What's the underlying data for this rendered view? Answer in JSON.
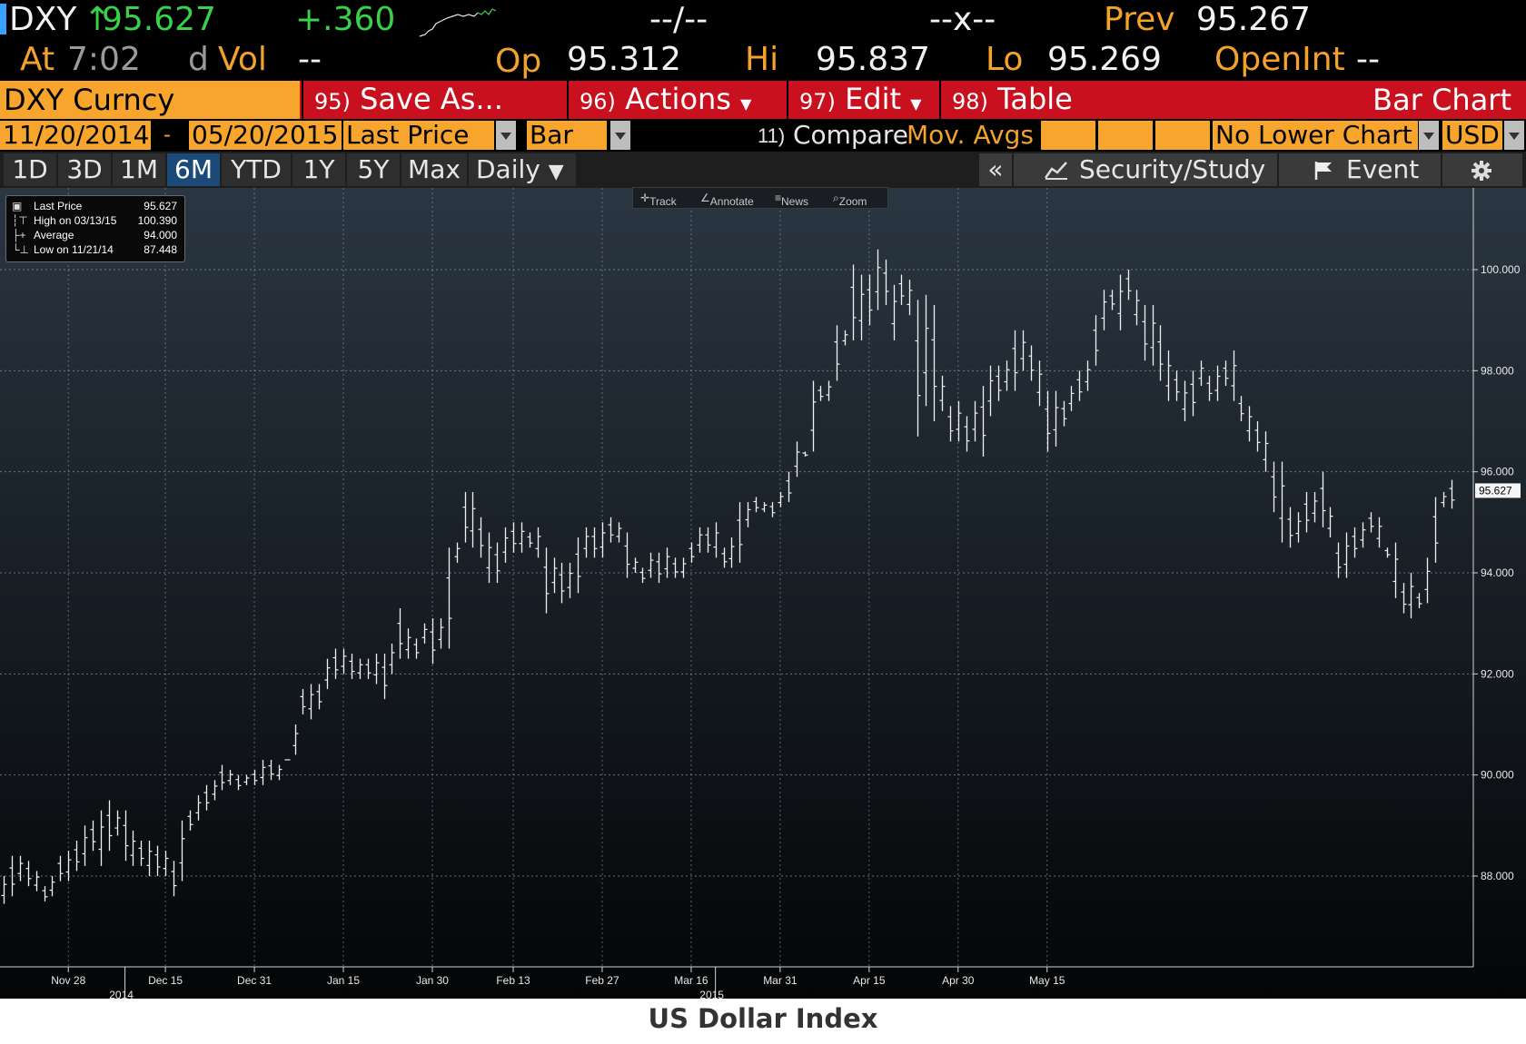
{
  "header": {
    "ticker": "DXY",
    "arrow": "↑",
    "last": "95.627",
    "change": "+.360",
    "dashes1": "--/--",
    "dashes2": "--x--",
    "prev_label": "Prev",
    "prev": "95.267",
    "at_label": "At",
    "time": "7:02",
    "dvol_d": "d",
    "dvol_label": "Vol",
    "dvol": "--",
    "op_label": "Op",
    "op": "95.312",
    "hi_label": "Hi",
    "hi": "95.837",
    "lo_label": "Lo",
    "lo": "95.269",
    "openint_label": "OpenInt",
    "openint": "--"
  },
  "actionbar": {
    "security": "DXY Curncy",
    "save_num": "95)",
    "save": "Save As...",
    "actions_num": "96)",
    "actions": "Actions",
    "edit_num": "97)",
    "edit": "Edit",
    "table_num": "98)",
    "table": "Table",
    "chart_type_title": "Bar Chart"
  },
  "settings": {
    "start_date": "11/20/2014",
    "dash": "-",
    "end_date": "05/20/2015",
    "field": "Last Price",
    "style": "Bar",
    "compare_num": "11)",
    "compare": "Compare",
    "mov_avgs": "Mov. Avgs",
    "lower_chart": "No Lower Chart",
    "currency": "USD"
  },
  "periods": {
    "buttons": [
      "1D",
      "3D",
      "1M",
      "6M",
      "YTD",
      "1Y",
      "5Y",
      "Max"
    ],
    "active": "6M",
    "frequency": "Daily",
    "collapse": "«",
    "security_study": "Security/Study",
    "event": "Event"
  },
  "toolbar": {
    "track": "Track",
    "annotate": "Annotate",
    "news": "News",
    "zoom": "Zoom"
  },
  "legend": {
    "rows": [
      {
        "label": "Last Price",
        "value": "95.627"
      },
      {
        "label": "High on 03/13/15",
        "value": "100.390"
      },
      {
        "label": "Average",
        "value": "94.000"
      },
      {
        "label": "Low on 11/21/14",
        "value": "87.448"
      }
    ]
  },
  "caption": "US Dollar Index",
  "colors": {
    "amber": "#f5a22a",
    "green": "#3ad14a",
    "red_bar": "#c8101e",
    "active_period": "#1c4a78",
    "chart_bg_top": "#2a3642",
    "chart_bg_bottom": "#040506"
  },
  "chart_data": {
    "type": "bar",
    "style": "OHLC price bars (high-low range with open/close ticks)",
    "grid": true,
    "ylim": [
      86.3,
      101.7
    ],
    "y_ticks": [
      "88.000",
      "90.000",
      "92.000",
      "94.000",
      "96.000",
      "98.000",
      "100.000"
    ],
    "x_tick_labels": [
      "Nov 28",
      "Dec 15",
      "Dec 31",
      "Jan 15",
      "Jan 30",
      "Feb 13",
      "Feb 27",
      "Mar 16",
      "Mar 31",
      "Apr 15",
      "Apr 30",
      "May 15"
    ],
    "year_labels": [
      "2014",
      "2015"
    ],
    "last_value_label": "95.627",
    "series": [
      {
        "values": [
          {
            "h": 88.0,
            "l": 87.45
          },
          {
            "h": 88.4,
            "l": 87.6
          },
          {
            "h": 88.4,
            "l": 87.9
          },
          {
            "h": 88.3,
            "l": 87.8
          },
          {
            "h": 88.1,
            "l": 87.7
          },
          {
            "h": 87.8,
            "l": 87.5
          },
          {
            "h": 88.0,
            "l": 87.6
          },
          {
            "h": 88.4,
            "l": 87.9
          },
          {
            "h": 88.5,
            "l": 87.9
          },
          {
            "h": 88.7,
            "l": 88.1
          },
          {
            "h": 89.0,
            "l": 88.2
          },
          {
            "h": 89.1,
            "l": 88.5
          },
          {
            "h": 89.3,
            "l": 88.2
          },
          {
            "h": 89.5,
            "l": 88.5
          },
          {
            "h": 89.3,
            "l": 88.8
          },
          {
            "h": 89.3,
            "l": 88.3
          },
          {
            "h": 88.9,
            "l": 88.2
          },
          {
            "h": 88.7,
            "l": 88.2
          },
          {
            "h": 88.7,
            "l": 88.0
          },
          {
            "h": 88.6,
            "l": 88.0
          },
          {
            "h": 88.5,
            "l": 88.0
          },
          {
            "h": 88.3,
            "l": 87.6
          },
          {
            "h": 89.1,
            "l": 87.9
          },
          {
            "h": 89.3,
            "l": 88.9
          },
          {
            "h": 89.6,
            "l": 89.1
          },
          {
            "h": 89.8,
            "l": 89.3
          },
          {
            "h": 89.9,
            "l": 89.5
          },
          {
            "h": 90.2,
            "l": 89.7
          },
          {
            "h": 90.1,
            "l": 89.8
          },
          {
            "h": 90.0,
            "l": 89.7
          },
          {
            "h": 90.0,
            "l": 89.8
          },
          {
            "h": 90.1,
            "l": 89.8
          },
          {
            "h": 90.3,
            "l": 89.8
          },
          {
            "h": 90.3,
            "l": 89.9
          },
          {
            "h": 90.2,
            "l": 89.9
          },
          {
            "h": 90.3,
            "l": 90.3
          },
          {
            "h": 91.0,
            "l": 90.4
          },
          {
            "h": 91.7,
            "l": 91.2
          },
          {
            "h": 91.8,
            "l": 91.1
          },
          {
            "h": 91.8,
            "l": 91.3
          },
          {
            "h": 92.3,
            "l": 91.7
          },
          {
            "h": 92.5,
            "l": 91.9
          },
          {
            "h": 92.5,
            "l": 92.0
          },
          {
            "h": 92.4,
            "l": 91.9
          },
          {
            "h": 92.3,
            "l": 91.9
          },
          {
            "h": 92.3,
            "l": 91.9
          },
          {
            "h": 92.4,
            "l": 91.8
          },
          {
            "h": 92.4,
            "l": 91.5
          },
          {
            "h": 92.6,
            "l": 92.0
          },
          {
            "h": 93.3,
            "l": 92.3
          },
          {
            "h": 92.9,
            "l": 92.3
          },
          {
            "h": 92.7,
            "l": 92.3
          },
          {
            "h": 93.0,
            "l": 92.6
          },
          {
            "h": 93.1,
            "l": 92.2
          },
          {
            "h": 93.1,
            "l": 92.5
          },
          {
            "h": 94.5,
            "l": 92.5
          },
          {
            "h": 94.6,
            "l": 94.2
          },
          {
            "h": 95.6,
            "l": 94.6
          },
          {
            "h": 95.6,
            "l": 94.5
          },
          {
            "h": 95.1,
            "l": 94.3
          },
          {
            "h": 94.8,
            "l": 93.8
          },
          {
            "h": 94.6,
            "l": 93.8
          },
          {
            "h": 94.9,
            "l": 94.2
          },
          {
            "h": 95.0,
            "l": 94.4
          },
          {
            "h": 95.0,
            "l": 94.4
          },
          {
            "h": 94.8,
            "l": 94.5
          },
          {
            "h": 94.9,
            "l": 94.3
          },
          {
            "h": 94.5,
            "l": 93.2
          },
          {
            "h": 94.3,
            "l": 93.6
          },
          {
            "h": 94.2,
            "l": 93.4
          },
          {
            "h": 94.2,
            "l": 93.5
          },
          {
            "h": 94.7,
            "l": 93.6
          },
          {
            "h": 94.9,
            "l": 94.3
          },
          {
            "h": 94.9,
            "l": 94.3
          },
          {
            "h": 95.0,
            "l": 94.3
          },
          {
            "h": 95.1,
            "l": 94.6
          },
          {
            "h": 95.0,
            "l": 94.6
          },
          {
            "h": 94.8,
            "l": 93.9
          },
          {
            "h": 94.3,
            "l": 94.0
          },
          {
            "h": 94.1,
            "l": 93.8
          },
          {
            "h": 94.4,
            "l": 93.9
          },
          {
            "h": 94.4,
            "l": 93.8
          },
          {
            "h": 94.5,
            "l": 93.9
          },
          {
            "h": 94.3,
            "l": 93.9
          },
          {
            "h": 94.3,
            "l": 93.9
          },
          {
            "h": 94.6,
            "l": 94.2
          },
          {
            "h": 94.9,
            "l": 94.4
          },
          {
            "h": 94.9,
            "l": 94.4
          },
          {
            "h": 95.0,
            "l": 94.3
          },
          {
            "h": 94.5,
            "l": 94.1
          },
          {
            "h": 94.7,
            "l": 94.1
          },
          {
            "h": 95.4,
            "l": 94.2
          },
          {
            "h": 95.4,
            "l": 94.9
          },
          {
            "h": 95.5,
            "l": 95.2
          },
          {
            "h": 95.4,
            "l": 95.2
          },
          {
            "h": 95.4,
            "l": 95.1
          },
          {
            "h": 95.6,
            "l": 95.3
          },
          {
            "h": 96.0,
            "l": 95.4
          },
          {
            "h": 96.6,
            "l": 95.9
          },
          {
            "h": 96.4,
            "l": 96.3
          },
          {
            "h": 97.8,
            "l": 96.4
          },
          {
            "h": 97.7,
            "l": 97.4
          },
          {
            "h": 97.8,
            "l": 97.4
          },
          {
            "h": 98.9,
            "l": 97.8
          },
          {
            "h": 98.8,
            "l": 98.5
          },
          {
            "h": 100.1,
            "l": 98.6
          },
          {
            "h": 99.9,
            "l": 98.6
          },
          {
            "h": 99.9,
            "l": 98.9
          },
          {
            "h": 100.4,
            "l": 99.2
          },
          {
            "h": 100.2,
            "l": 99.3
          },
          {
            "h": 99.7,
            "l": 98.6
          },
          {
            "h": 99.9,
            "l": 99.3
          },
          {
            "h": 99.8,
            "l": 99.1
          },
          {
            "h": 99.4,
            "l": 96.7
          },
          {
            "h": 99.5,
            "l": 97.3
          },
          {
            "h": 99.3,
            "l": 97.0
          },
          {
            "h": 97.9,
            "l": 97.2
          },
          {
            "h": 97.3,
            "l": 96.6
          },
          {
            "h": 97.4,
            "l": 96.6
          },
          {
            "h": 97.1,
            "l": 96.4
          },
          {
            "h": 97.4,
            "l": 96.6
          },
          {
            "h": 97.7,
            "l": 96.3
          },
          {
            "h": 98.1,
            "l": 97.1
          },
          {
            "h": 98.1,
            "l": 97.4
          },
          {
            "h": 98.2,
            "l": 97.6
          },
          {
            "h": 98.8,
            "l": 97.6
          },
          {
            "h": 98.8,
            "l": 98.0
          },
          {
            "h": 98.5,
            "l": 97.8
          },
          {
            "h": 98.2,
            "l": 97.3
          },
          {
            "h": 97.6,
            "l": 96.4
          },
          {
            "h": 97.6,
            "l": 96.5
          },
          {
            "h": 97.4,
            "l": 96.9
          },
          {
            "h": 97.7,
            "l": 97.2
          },
          {
            "h": 98.0,
            "l": 97.4
          },
          {
            "h": 98.2,
            "l": 97.6
          },
          {
            "h": 99.1,
            "l": 98.1
          },
          {
            "h": 99.6,
            "l": 98.8
          },
          {
            "h": 99.6,
            "l": 99.2
          },
          {
            "h": 99.9,
            "l": 98.8
          },
          {
            "h": 100.0,
            "l": 99.4
          },
          {
            "h": 99.6,
            "l": 98.9
          },
          {
            "h": 99.3,
            "l": 98.2
          },
          {
            "h": 99.3,
            "l": 98.1
          },
          {
            "h": 98.9,
            "l": 97.8
          },
          {
            "h": 98.4,
            "l": 97.4
          },
          {
            "h": 98.0,
            "l": 97.4
          },
          {
            "h": 97.8,
            "l": 97.0
          },
          {
            "h": 98.0,
            "l": 97.1
          },
          {
            "h": 98.2,
            "l": 97.7
          },
          {
            "h": 97.9,
            "l": 97.4
          },
          {
            "h": 98.1,
            "l": 97.4
          },
          {
            "h": 98.2,
            "l": 97.7
          },
          {
            "h": 98.4,
            "l": 97.4
          },
          {
            "h": 97.5,
            "l": 97.0
          },
          {
            "h": 97.3,
            "l": 96.6
          },
          {
            "h": 97.0,
            "l": 96.4
          },
          {
            "h": 96.8,
            "l": 96.0
          },
          {
            "h": 96.2,
            "l": 95.2
          },
          {
            "h": 96.2,
            "l": 94.6
          },
          {
            "h": 95.3,
            "l": 94.5
          },
          {
            "h": 95.2,
            "l": 94.6
          },
          {
            "h": 95.6,
            "l": 94.8
          },
          {
            "h": 95.6,
            "l": 95.0
          },
          {
            "h": 96.0,
            "l": 94.9
          },
          {
            "h": 95.3,
            "l": 94.7
          },
          {
            "h": 94.6,
            "l": 93.9
          },
          {
            "h": 94.8,
            "l": 93.9
          },
          {
            "h": 94.9,
            "l": 94.3
          },
          {
            "h": 95.0,
            "l": 94.5
          },
          {
            "h": 95.2,
            "l": 94.8
          },
          {
            "h": 95.1,
            "l": 94.5
          },
          {
            "h": 94.5,
            "l": 94.3
          },
          {
            "h": 94.6,
            "l": 93.5
          },
          {
            "h": 93.8,
            "l": 93.2
          },
          {
            "h": 94.0,
            "l": 93.1
          },
          {
            "h": 93.6,
            "l": 93.3
          },
          {
            "h": 94.3,
            "l": 93.4
          },
          {
            "h": 95.5,
            "l": 94.2
          },
          {
            "h": 95.6,
            "l": 95.3
          },
          {
            "h": 95.84,
            "l": 95.27
          }
        ]
      }
    ]
  }
}
